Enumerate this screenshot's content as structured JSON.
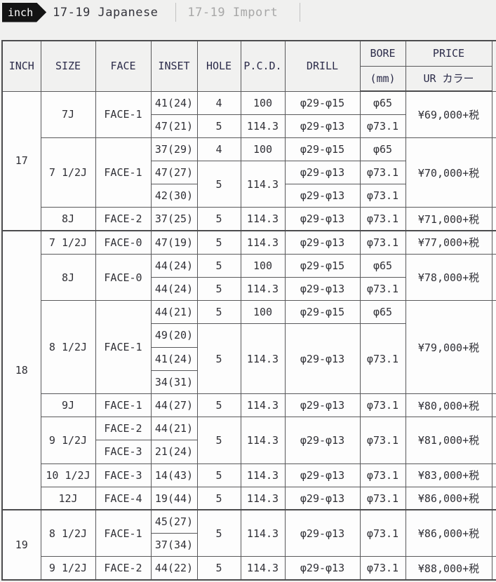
{
  "tabs": {
    "tag_label": "inch",
    "active_label": "17-19 Japanese",
    "inactive_label": "17-19 Import"
  },
  "table": {
    "header_rows": [
      {
        "cells": [
          {
            "t": "INCH",
            "rs": 2,
            "col": "inch"
          },
          {
            "t": "SIZE",
            "rs": 2,
            "col": "size"
          },
          {
            "t": "FACE",
            "rs": 2,
            "col": "face"
          },
          {
            "t": "INSET",
            "rs": 2,
            "col": "inset"
          },
          {
            "t": "HOLE",
            "rs": 2,
            "col": "hole"
          },
          {
            "t": "P.C.D.",
            "rs": 2,
            "col": "pcd"
          },
          {
            "t": "DRILL",
            "rs": 2,
            "col": "drill"
          },
          {
            "t": "BORE",
            "col": "bore"
          },
          {
            "t": "PRICE",
            "col": "price"
          },
          {
            "t": "",
            "rs": 2,
            "col": "extra"
          }
        ]
      },
      {
        "cells": [
          {
            "t": "(mm)",
            "col": "bore-unit"
          },
          {
            "t": "UR カラー",
            "col": "price-sub"
          }
        ]
      }
    ],
    "rows": [
      {
        "cells": [
          {
            "t": "17",
            "rs": 6,
            "col": "inch"
          },
          {
            "t": "7J",
            "rs": 2,
            "col": "size"
          },
          {
            "t": "FACE-1",
            "rs": 2,
            "col": "face"
          },
          {
            "t": "41(24)",
            "col": "inset"
          },
          {
            "t": "4",
            "col": "hole"
          },
          {
            "t": "100",
            "col": "pcd"
          },
          {
            "t": "φ29-φ15",
            "col": "drill"
          },
          {
            "t": "φ65",
            "col": "bore"
          },
          {
            "t": "¥69,000+税",
            "rs": 2,
            "col": "price"
          },
          {
            "t": "",
            "rs": 2,
            "col": "extra"
          }
        ]
      },
      {
        "cells": [
          {
            "t": "47(21)",
            "col": "inset"
          },
          {
            "t": "5",
            "col": "hole"
          },
          {
            "t": "114.3",
            "col": "pcd"
          },
          {
            "t": "φ29-φ13",
            "col": "drill"
          },
          {
            "t": "φ73.1",
            "col": "bore"
          }
        ]
      },
      {
        "cells": [
          {
            "t": "7 1/2J",
            "rs": 3,
            "col": "size"
          },
          {
            "t": "FACE-1",
            "rs": 3,
            "col": "face"
          },
          {
            "t": "37(29)",
            "col": "inset"
          },
          {
            "t": "4",
            "col": "hole"
          },
          {
            "t": "100",
            "col": "pcd"
          },
          {
            "t": "φ29-φ15",
            "col": "drill"
          },
          {
            "t": "φ65",
            "col": "bore"
          },
          {
            "t": "¥70,000+税",
            "rs": 3,
            "col": "price"
          },
          {
            "t": "",
            "rs": 3,
            "col": "extra"
          }
        ]
      },
      {
        "cells": [
          {
            "t": "47(27)",
            "col": "inset"
          },
          {
            "t": "5",
            "rs": 2,
            "col": "hole"
          },
          {
            "t": "114.3",
            "rs": 2,
            "col": "pcd"
          },
          {
            "t": "φ29-φ13",
            "col": "drill"
          },
          {
            "t": "φ73.1",
            "col": "bore"
          }
        ]
      },
      {
        "cells": [
          {
            "t": "42(30)",
            "col": "inset"
          },
          {
            "t": "φ29-φ13",
            "col": "drill"
          },
          {
            "t": "φ73.1",
            "col": "bore"
          }
        ]
      },
      {
        "cells": [
          {
            "t": "8J",
            "col": "size"
          },
          {
            "t": "FACE-2",
            "col": "face"
          },
          {
            "t": "37(25)",
            "col": "inset"
          },
          {
            "t": "5",
            "col": "hole"
          },
          {
            "t": "114.3",
            "col": "pcd"
          },
          {
            "t": "φ29-φ13",
            "col": "drill"
          },
          {
            "t": "φ73.1",
            "col": "bore"
          },
          {
            "t": "¥71,000+税",
            "col": "price"
          },
          {
            "t": "",
            "col": "extra"
          }
        ]
      },
      {
        "sec": true,
        "cells": [
          {
            "t": "18",
            "rs": 12,
            "col": "inch"
          },
          {
            "t": "7 1/2J",
            "col": "size"
          },
          {
            "t": "FACE-0",
            "col": "face"
          },
          {
            "t": "47(19)",
            "col": "inset"
          },
          {
            "t": "5",
            "col": "hole"
          },
          {
            "t": "114.3",
            "col": "pcd"
          },
          {
            "t": "φ29-φ13",
            "col": "drill"
          },
          {
            "t": "φ73.1",
            "col": "bore"
          },
          {
            "t": "¥77,000+税",
            "col": "price"
          },
          {
            "t": "",
            "col": "extra"
          }
        ]
      },
      {
        "cells": [
          {
            "t": "8J",
            "rs": 2,
            "col": "size"
          },
          {
            "t": "FACE-0",
            "rs": 2,
            "col": "face"
          },
          {
            "t": "44(24)",
            "col": "inset"
          },
          {
            "t": "5",
            "col": "hole"
          },
          {
            "t": "100",
            "col": "pcd"
          },
          {
            "t": "φ29-φ15",
            "col": "drill"
          },
          {
            "t": "φ65",
            "col": "bore"
          },
          {
            "t": "¥78,000+税",
            "rs": 2,
            "col": "price"
          },
          {
            "t": "",
            "rs": 2,
            "col": "extra"
          }
        ]
      },
      {
        "cells": [
          {
            "t": "44(24)",
            "col": "inset"
          },
          {
            "t": "5",
            "col": "hole"
          },
          {
            "t": "114.3",
            "col": "pcd"
          },
          {
            "t": "φ29-φ13",
            "col": "drill"
          },
          {
            "t": "φ73.1",
            "col": "bore"
          }
        ]
      },
      {
        "cells": [
          {
            "t": "8 1/2J",
            "rs": 4,
            "col": "size"
          },
          {
            "t": "FACE-1",
            "rs": 4,
            "col": "face"
          },
          {
            "t": "44(21)",
            "col": "inset"
          },
          {
            "t": "5",
            "col": "hole"
          },
          {
            "t": "100",
            "col": "pcd"
          },
          {
            "t": "φ29-φ15",
            "col": "drill"
          },
          {
            "t": "φ65",
            "col": "bore"
          },
          {
            "t": "¥79,000+税",
            "rs": 4,
            "col": "price"
          },
          {
            "t": "",
            "rs": 4,
            "col": "extra"
          }
        ]
      },
      {
        "cells": [
          {
            "t": "49(20)",
            "col": "inset"
          },
          {
            "t": "5",
            "rs": 3,
            "col": "hole"
          },
          {
            "t": "114.3",
            "rs": 3,
            "col": "pcd"
          },
          {
            "t": "φ29-φ13",
            "rs": 3,
            "col": "drill"
          },
          {
            "t": "φ73.1",
            "rs": 3,
            "col": "bore"
          }
        ]
      },
      {
        "cells": [
          {
            "t": "41(24)",
            "col": "inset"
          }
        ]
      },
      {
        "cells": [
          {
            "t": "34(31)",
            "col": "inset"
          }
        ]
      },
      {
        "cells": [
          {
            "t": "9J",
            "col": "size"
          },
          {
            "t": "FACE-1",
            "col": "face"
          },
          {
            "t": "44(27)",
            "col": "inset"
          },
          {
            "t": "5",
            "col": "hole"
          },
          {
            "t": "114.3",
            "col": "pcd"
          },
          {
            "t": "φ29-φ13",
            "col": "drill"
          },
          {
            "t": "φ73.1",
            "col": "bore"
          },
          {
            "t": "¥80,000+税",
            "col": "price"
          },
          {
            "t": "",
            "col": "extra"
          }
        ]
      },
      {
        "cells": [
          {
            "t": "9 1/2J",
            "rs": 2,
            "col": "size"
          },
          {
            "t": "FACE-2",
            "col": "face"
          },
          {
            "t": "44(21)",
            "col": "inset"
          },
          {
            "t": "5",
            "rs": 2,
            "col": "hole"
          },
          {
            "t": "114.3",
            "rs": 2,
            "col": "pcd"
          },
          {
            "t": "φ29-φ13",
            "rs": 2,
            "col": "drill"
          },
          {
            "t": "φ73.1",
            "rs": 2,
            "col": "bore"
          },
          {
            "t": "¥81,000+税",
            "rs": 2,
            "col": "price"
          },
          {
            "t": "",
            "rs": 2,
            "col": "extra"
          }
        ]
      },
      {
        "cells": [
          {
            "t": "FACE-3",
            "col": "face"
          },
          {
            "t": "21(24)",
            "col": "inset"
          }
        ]
      },
      {
        "cells": [
          {
            "t": "10 1/2J",
            "col": "size"
          },
          {
            "t": "FACE-3",
            "col": "face"
          },
          {
            "t": "14(43)",
            "col": "inset"
          },
          {
            "t": "5",
            "col": "hole"
          },
          {
            "t": "114.3",
            "col": "pcd"
          },
          {
            "t": "φ29-φ13",
            "col": "drill"
          },
          {
            "t": "φ73.1",
            "col": "bore"
          },
          {
            "t": "¥83,000+税",
            "col": "price"
          },
          {
            "t": "",
            "col": "extra"
          }
        ]
      },
      {
        "cells": [
          {
            "t": "12J",
            "col": "size"
          },
          {
            "t": "FACE-4",
            "col": "face"
          },
          {
            "t": "19(44)",
            "col": "inset"
          },
          {
            "t": "5",
            "col": "hole"
          },
          {
            "t": "114.3",
            "col": "pcd"
          },
          {
            "t": "φ29-φ13",
            "col": "drill"
          },
          {
            "t": "φ73.1",
            "col": "bore"
          },
          {
            "t": "¥86,000+税",
            "col": "price"
          },
          {
            "t": "",
            "col": "extra"
          }
        ]
      },
      {
        "sec": true,
        "cells": [
          {
            "t": "19",
            "rs": 3,
            "col": "inch"
          },
          {
            "t": "8 1/2J",
            "rs": 2,
            "col": "size"
          },
          {
            "t": "FACE-1",
            "rs": 2,
            "col": "face"
          },
          {
            "t": "45(27)",
            "col": "inset"
          },
          {
            "t": "5",
            "rs": 2,
            "col": "hole"
          },
          {
            "t": "114.3",
            "rs": 2,
            "col": "pcd"
          },
          {
            "t": "φ29-φ13",
            "rs": 2,
            "col": "drill"
          },
          {
            "t": "φ73.1",
            "rs": 2,
            "col": "bore"
          },
          {
            "t": "¥86,000+税",
            "rs": 2,
            "col": "price"
          },
          {
            "t": "",
            "rs": 2,
            "col": "extra"
          }
        ]
      },
      {
        "cells": [
          {
            "t": "37(34)",
            "col": "inset"
          }
        ]
      },
      {
        "cells": [
          {
            "t": "9 1/2J",
            "col": "size"
          },
          {
            "t": "FACE-2",
            "col": "face"
          },
          {
            "t": "44(22)",
            "col": "inset"
          },
          {
            "t": "5",
            "col": "hole"
          },
          {
            "t": "114.3",
            "col": "pcd"
          },
          {
            "t": "φ29-φ13",
            "col": "drill"
          },
          {
            "t": "φ73.1",
            "col": "bore"
          },
          {
            "t": "¥88,000+税",
            "col": "price"
          },
          {
            "t": "",
            "col": "extra"
          }
        ]
      }
    ]
  }
}
